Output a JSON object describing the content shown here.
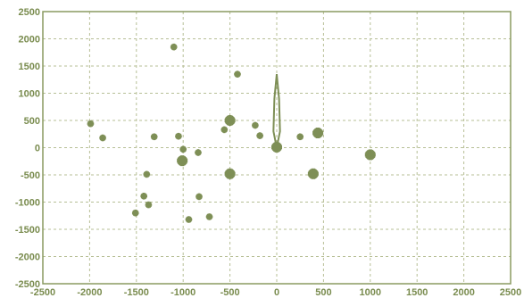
{
  "chart_data": {
    "type": "scatter",
    "title": "",
    "xlabel": "",
    "ylabel": "",
    "xlim": [
      -2500,
      2500
    ],
    "ylim": [
      -2500,
      2500
    ],
    "grid": true,
    "x_ticks": [
      -2500,
      -2000,
      -1500,
      -1000,
      -500,
      0,
      500,
      1000,
      1500,
      2000,
      2500
    ],
    "y_ticks": [
      2500,
      2000,
      1500,
      1000,
      500,
      0,
      -500,
      -1000,
      -1500,
      -2000,
      -2500
    ],
    "x_tick_labels": [
      "-2500",
      "-2000",
      "-1500",
      "-1000",
      "-500",
      "0",
      "500",
      "1000",
      "1500",
      "2000",
      "2500"
    ],
    "y_tick_labels": [
      "2500",
      "2000",
      "1500",
      "1000",
      "500",
      "0",
      "-500",
      "-1000",
      "-1500",
      "-2000",
      "-2500"
    ],
    "colors": {
      "marker": "#7e8f56",
      "grid": "#b7bf96",
      "text": "#7a8c4f"
    },
    "marker": "asterisk",
    "series": [
      {
        "points": [
          {
            "x": -1100,
            "y": 1850,
            "w": "small"
          },
          {
            "x": -420,
            "y": 1350,
            "w": "small"
          },
          {
            "x": -1990,
            "y": 440,
            "w": "small"
          },
          {
            "x": -1860,
            "y": 180,
            "w": "small"
          },
          {
            "x": -1310,
            "y": 200,
            "w": "small"
          },
          {
            "x": -1050,
            "y": 210,
            "w": "small"
          },
          {
            "x": -1000,
            "y": -30,
            "w": "small"
          },
          {
            "x": -1010,
            "y": -240,
            "w": "big"
          },
          {
            "x": -840,
            "y": -90,
            "w": "small"
          },
          {
            "x": -560,
            "y": 330,
            "w": "small"
          },
          {
            "x": -500,
            "y": 500,
            "w": "big"
          },
          {
            "x": -500,
            "y": -480,
            "w": "big"
          },
          {
            "x": -230,
            "y": 410,
            "w": "small"
          },
          {
            "x": -180,
            "y": 220,
            "w": "small"
          },
          {
            "x": 0,
            "y": 10,
            "w": "big"
          },
          {
            "x": 250,
            "y": 200,
            "w": "small"
          },
          {
            "x": 440,
            "y": 270,
            "w": "big"
          },
          {
            "x": 390,
            "y": -480,
            "w": "big"
          },
          {
            "x": 1000,
            "y": -130,
            "w": "big"
          },
          {
            "x": -1390,
            "y": -490,
            "w": "small"
          },
          {
            "x": -1420,
            "y": -890,
            "w": "small"
          },
          {
            "x": -1370,
            "y": -1050,
            "w": "small"
          },
          {
            "x": -1510,
            "y": -1200,
            "w": "small"
          },
          {
            "x": -830,
            "y": -900,
            "w": "small"
          },
          {
            "x": -940,
            "y": -1320,
            "w": "small"
          },
          {
            "x": -720,
            "y": -1270,
            "w": "small"
          }
        ]
      }
    ],
    "spike": [
      {
        "x": 0,
        "y": 0
      },
      {
        "x": -35,
        "y": 300
      },
      {
        "x": -25,
        "y": 900
      },
      {
        "x": 0,
        "y": 1350
      },
      {
        "x": 25,
        "y": 900
      },
      {
        "x": 35,
        "y": 300
      },
      {
        "x": 0,
        "y": 0
      }
    ]
  }
}
